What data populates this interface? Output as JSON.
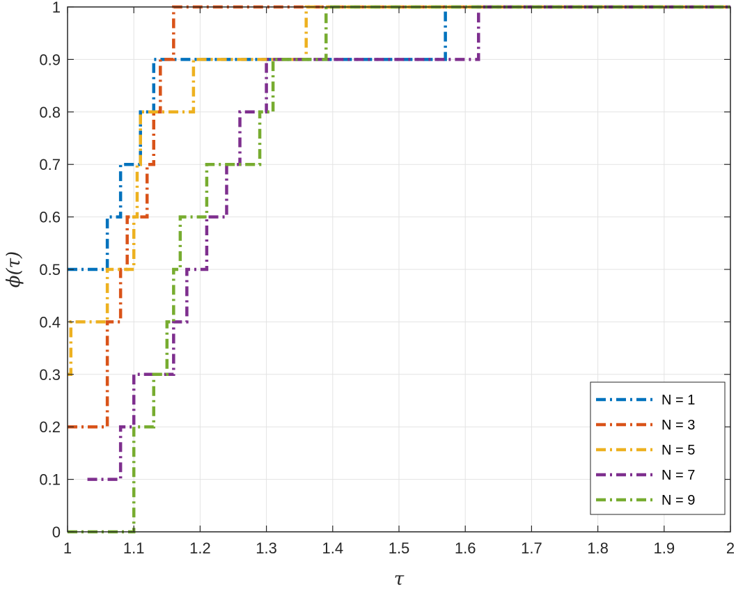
{
  "chart_data": {
    "type": "line",
    "title": "",
    "xlabel": "τ",
    "ylabel": "ϕ(τ)",
    "xlim": [
      1,
      2
    ],
    "ylim": [
      0,
      1
    ],
    "grid": true,
    "legend_position": "bottom-right",
    "x_ticks": [
      1,
      1.1,
      1.2,
      1.3,
      1.4,
      1.5,
      1.6,
      1.7,
      1.8,
      1.9,
      2
    ],
    "y_ticks": [
      0,
      0.1,
      0.2,
      0.3,
      0.4,
      0.5,
      0.6,
      0.7,
      0.8,
      0.9,
      1
    ],
    "x_tick_labels": [
      "1",
      "1.1",
      "1.2",
      "1.3",
      "1.4",
      "1.5",
      "1.6",
      "1.7",
      "1.8",
      "1.9",
      "2"
    ],
    "y_tick_labels": [
      "0",
      "0.1",
      "0.2",
      "0.3",
      "0.4",
      "0.5",
      "0.6",
      "0.7",
      "0.8",
      "0.9",
      "1"
    ],
    "series": [
      {
        "name": "N = 1",
        "color": "#0072BD",
        "line_style": "dash-dot",
        "step": true,
        "x": [
          1.0,
          1.06,
          1.08,
          1.11,
          1.13,
          1.57,
          2.0
        ],
        "y": [
          0.5,
          0.6,
          0.7,
          0.8,
          0.9,
          1.0,
          1.0
        ]
      },
      {
        "name": "N = 3",
        "color": "#D95319",
        "line_style": "dash-dot",
        "step": true,
        "x": [
          1.0,
          1.06,
          1.08,
          1.09,
          1.12,
          1.13,
          1.14,
          1.16,
          2.0
        ],
        "y": [
          0.2,
          0.4,
          0.5,
          0.6,
          0.7,
          0.8,
          0.9,
          1.0,
          1.0
        ]
      },
      {
        "name": "N = 5",
        "color": "#EDB120",
        "line_style": "dash-dot",
        "step": true,
        "x": [
          1.0,
          1.005,
          1.06,
          1.1,
          1.105,
          1.11,
          1.19,
          1.36,
          2.0
        ],
        "y": [
          0.3,
          0.4,
          0.5,
          0.6,
          0.7,
          0.8,
          0.9,
          1.0,
          1.0
        ]
      },
      {
        "name": "N = 7",
        "color": "#7E2F8E",
        "line_style": "dash-dot",
        "step": true,
        "x": [
          1.03,
          1.08,
          1.1,
          1.16,
          1.18,
          1.21,
          1.24,
          1.26,
          1.3,
          1.62,
          2.0
        ],
        "y": [
          0.1,
          0.2,
          0.3,
          0.4,
          0.5,
          0.6,
          0.7,
          0.8,
          0.9,
          1.0,
          1.0
        ]
      },
      {
        "name": "N = 9",
        "color": "#77AC30",
        "line_style": "dash-dot",
        "step": true,
        "x": [
          1.0,
          1.1,
          1.13,
          1.15,
          1.16,
          1.17,
          1.21,
          1.29,
          1.31,
          1.39,
          2.0
        ],
        "y": [
          0.0,
          0.2,
          0.3,
          0.4,
          0.5,
          0.6,
          0.7,
          0.8,
          0.9,
          1.0,
          1.0
        ]
      }
    ]
  }
}
